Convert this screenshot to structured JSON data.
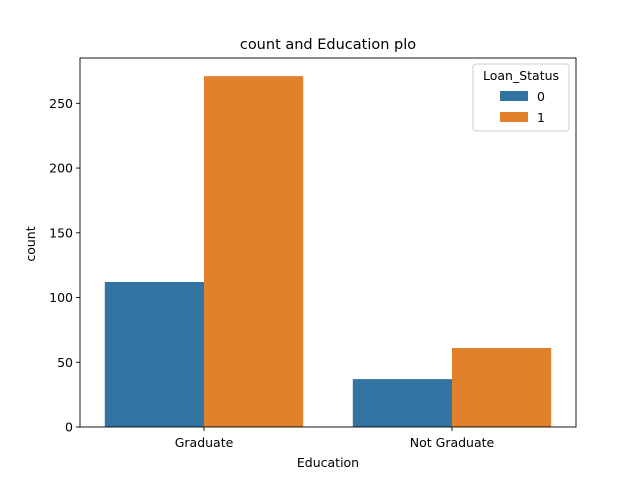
{
  "chart_data": {
    "type": "bar",
    "title": "count and Education plo",
    "xlabel": "Education",
    "ylabel": "count",
    "categories": [
      "Graduate",
      "Not Graduate"
    ],
    "series": [
      {
        "name": "0",
        "values": [
          112,
          37
        ],
        "color": "#3274a1"
      },
      {
        "name": "1",
        "values": [
          271,
          61
        ],
        "color": "#e1812c"
      }
    ],
    "ylim": [
      0,
      285
    ],
    "yticks": [
      0,
      50,
      100,
      150,
      200,
      250
    ],
    "legend": {
      "title": "Loan_Status",
      "placement": "top-right"
    },
    "grid": false
  }
}
